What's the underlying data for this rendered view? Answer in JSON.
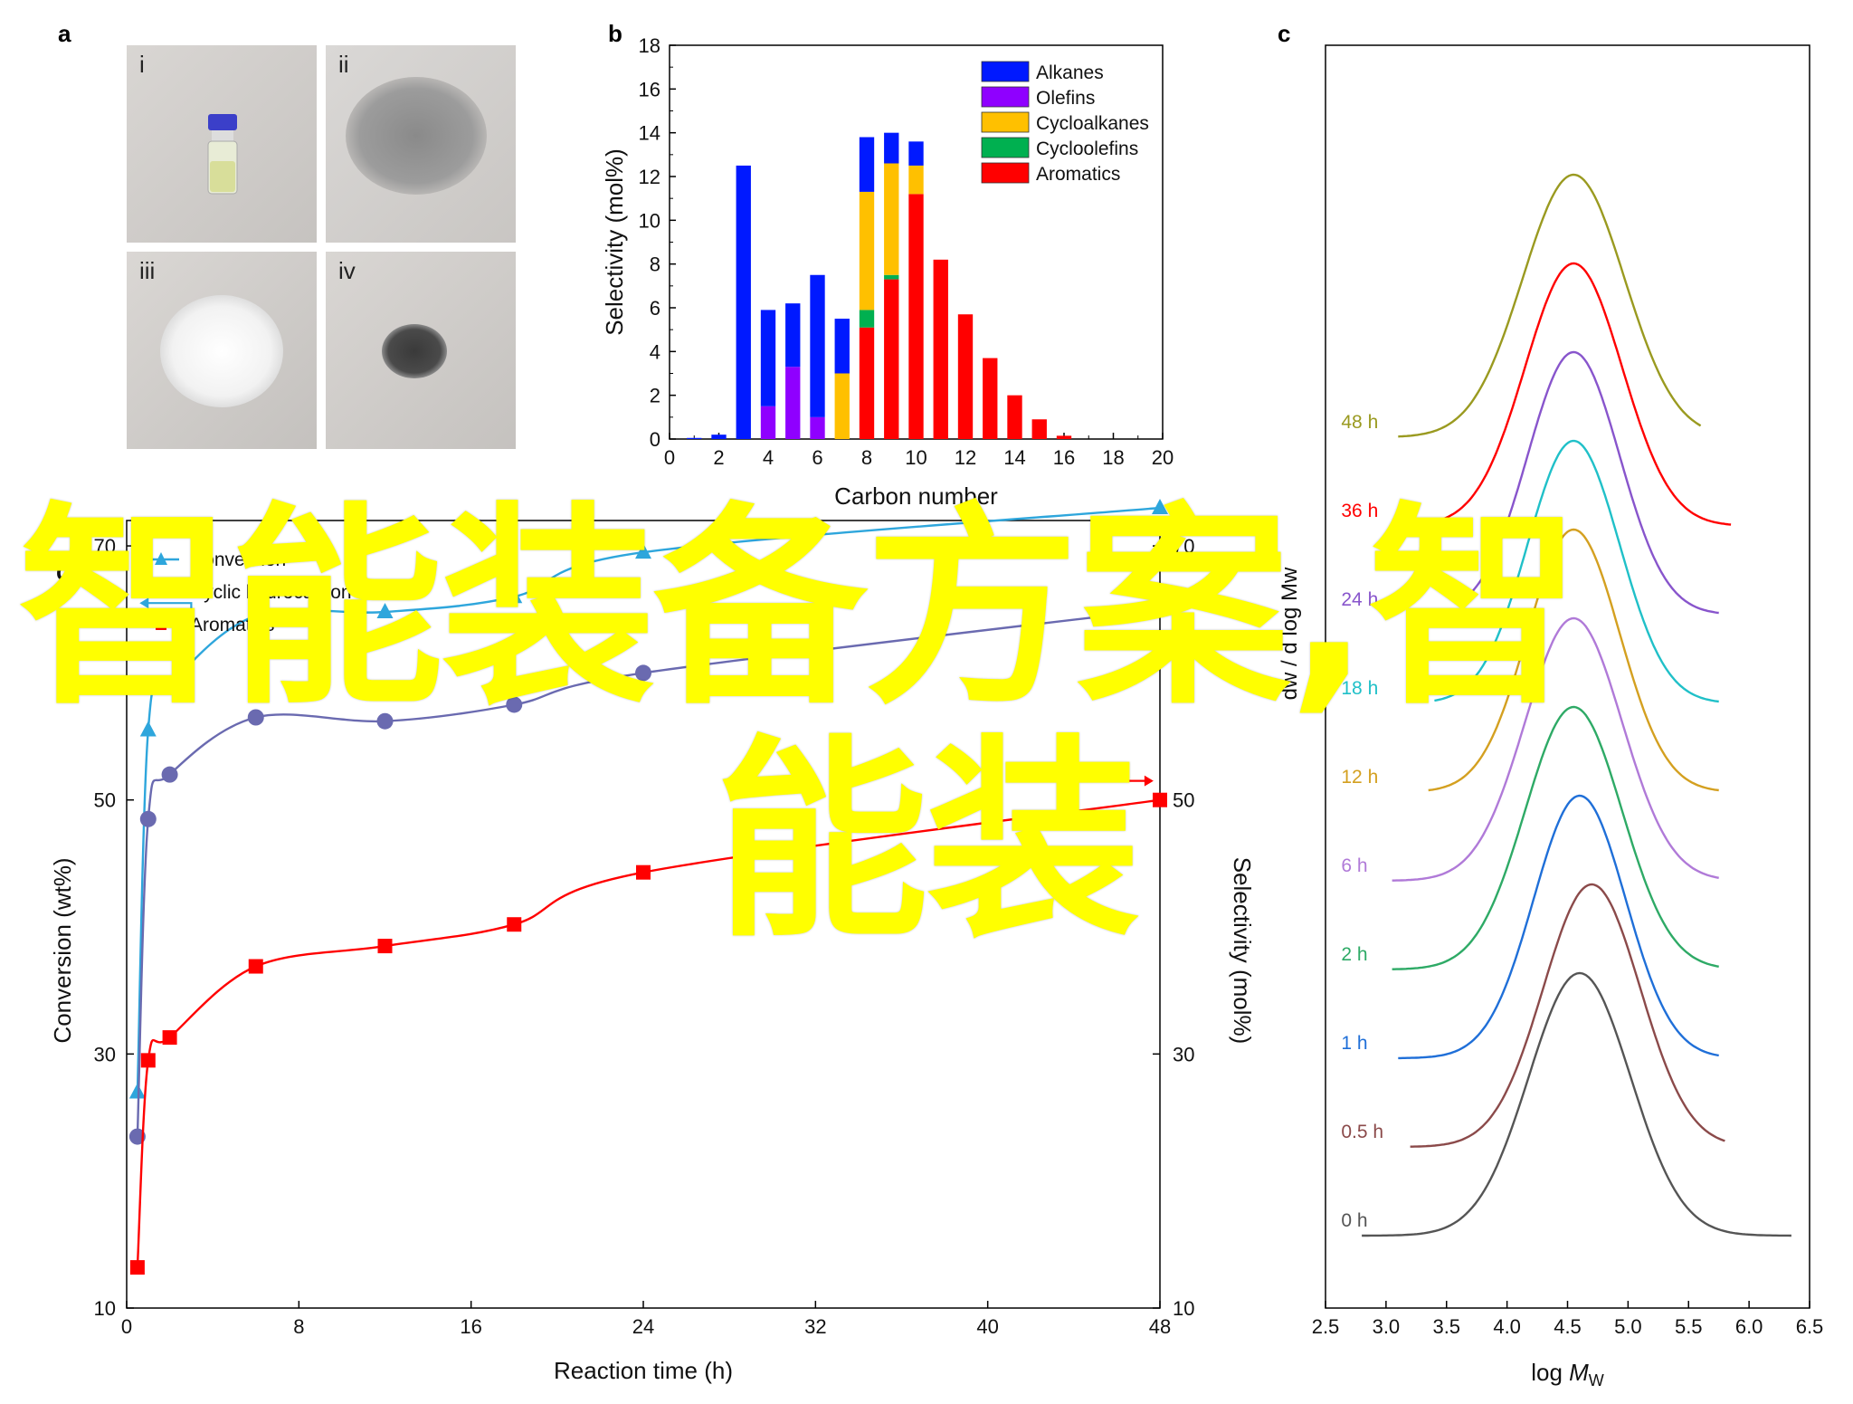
{
  "panels": {
    "a": "a",
    "b": "b",
    "c": "c",
    "d": "d"
  },
  "photos": [
    {
      "label": "i",
      "subject": "vial-with-liquid"
    },
    {
      "label": "ii",
      "subject": "grey-powder"
    },
    {
      "label": "iii",
      "subject": "white-powder"
    },
    {
      "label": "iv",
      "subject": "dark-powder"
    }
  ],
  "watermark": {
    "line1": "智能装备方案,智",
    "line2": "能装"
  },
  "colors": {
    "alkanes": "#0019ff",
    "olefins": "#8f00ff",
    "cycloalkanes": "#ffc000",
    "cycloolefins": "#00b050",
    "aromatics": "#ff0000",
    "conversion": "#2ea6dc",
    "cyclic": "#6a6ab0",
    "aromatic_line": "#ff0000",
    "watermark": "#ffff00"
  },
  "chart_data": [
    {
      "id": "b",
      "type": "bar",
      "stacked": true,
      "xlabel": "Carbon number",
      "ylabel": "Selectivity (mol%)",
      "xlim": [
        0,
        20
      ],
      "ylim": [
        0,
        18
      ],
      "xticks": [
        "0",
        "2",
        "4",
        "6",
        "8",
        "10",
        "12",
        "14",
        "16",
        "18",
        "20"
      ],
      "yticks": [
        "0",
        "2",
        "4",
        "6",
        "8",
        "10",
        "12",
        "14",
        "16",
        "18"
      ],
      "legend_position": "top-right",
      "categories": [
        1,
        2,
        3,
        4,
        5,
        6,
        7,
        8,
        9,
        10,
        11,
        12,
        13,
        14,
        15,
        16
      ],
      "series": [
        {
          "name": "Aromatics",
          "color": "#ff0000",
          "values": [
            0,
            0,
            0,
            0,
            0,
            0,
            0,
            5.1,
            7.3,
            11.2,
            8.2,
            5.7,
            3.7,
            2.0,
            0.9,
            0.15
          ]
        },
        {
          "name": "Cycloolefins",
          "color": "#00b050",
          "values": [
            0,
            0,
            0,
            0,
            0,
            0,
            0,
            0.8,
            0.2,
            0,
            0,
            0,
            0,
            0,
            0,
            0
          ]
        },
        {
          "name": "Cycloalkanes",
          "color": "#ffc000",
          "values": [
            0,
            0,
            0,
            0,
            0,
            0,
            3.0,
            5.4,
            5.1,
            1.3,
            0,
            0,
            0,
            0,
            0,
            0
          ]
        },
        {
          "name": "Olefins",
          "color": "#8f00ff",
          "values": [
            0,
            0,
            0,
            1.5,
            3.3,
            1.0,
            0,
            0,
            0,
            0,
            0,
            0,
            0,
            0,
            0,
            0
          ]
        },
        {
          "name": "Alkanes",
          "color": "#0019ff",
          "values": [
            0.05,
            0.2,
            12.5,
            4.4,
            2.9,
            6.5,
            2.5,
            2.5,
            1.4,
            1.1,
            0,
            0,
            0,
            0,
            0,
            0
          ]
        }
      ]
    },
    {
      "id": "c",
      "type": "line",
      "xlabel_main": "log ",
      "xlabel_italic": "M",
      "xlabel_sub": "W",
      "ylabel": "dw / d log Mw",
      "xlim": [
        2.5,
        6.5
      ],
      "xticks": [
        "2.5",
        "3.0",
        "3.5",
        "4.0",
        "4.5",
        "5.0",
        "5.5",
        "6.0",
        "6.5"
      ],
      "series": [
        {
          "name": "0 h",
          "color": "#555555",
          "peak_x": 4.6,
          "width": 0.42,
          "range": [
            2.8,
            6.35
          ]
        },
        {
          "name": "0.5 h",
          "color": "#8b4a4a",
          "peak_x": 4.7,
          "width": 0.4,
          "range": [
            3.2,
            5.8
          ]
        },
        {
          "name": "1 h",
          "color": "#1f6fd8",
          "peak_x": 4.6,
          "width": 0.38,
          "range": [
            3.1,
            5.75
          ]
        },
        {
          "name": "2 h",
          "color": "#2eaa66",
          "peak_x": 4.55,
          "width": 0.4,
          "range": [
            3.05,
            5.75
          ]
        },
        {
          "name": "6 h",
          "color": "#b07ad8",
          "peak_x": 4.55,
          "width": 0.4,
          "range": [
            3.05,
            5.75
          ]
        },
        {
          "name": "12 h",
          "color": "#d4a020",
          "peak_x": 4.55,
          "width": 0.38,
          "range": [
            3.35,
            5.75
          ]
        },
        {
          "name": "18 h",
          "color": "#20c0c8",
          "peak_x": 4.55,
          "width": 0.38,
          "range": [
            3.4,
            5.75
          ]
        },
        {
          "name": "24 h",
          "color": "#8855cc",
          "peak_x": 4.55,
          "width": 0.38,
          "range": [
            3.6,
            5.75
          ]
        },
        {
          "name": "36 h",
          "color": "#ff0000",
          "peak_x": 4.55,
          "width": 0.4,
          "range": [
            3.1,
            5.85
          ]
        },
        {
          "name": "48 h",
          "color": "#9a9a20",
          "peak_x": 4.55,
          "width": 0.42,
          "range": [
            3.1,
            5.6
          ]
        }
      ]
    },
    {
      "id": "d",
      "type": "scatter",
      "xlabel": "Reaction time (h)",
      "ylabel_left": "Conversion (wt%)",
      "ylabel_right": "Selectivity (mol%)",
      "xlim": [
        0,
        48
      ],
      "ylim": [
        10,
        72
      ],
      "xticks": [
        0,
        8,
        16,
        24,
        32,
        40,
        48
      ],
      "yticks": [
        10,
        30,
        50,
        70
      ],
      "legend_position": "top-left",
      "series": [
        {
          "name": "Conversion",
          "color": "#2ea6dc",
          "marker": "triangle",
          "x": [
            0.5,
            1,
            2,
            6,
            12,
            18,
            24,
            48
          ],
          "y": [
            27,
            55.5,
            59,
            64.5,
            64.8,
            66,
            69.5,
            73
          ]
        },
        {
          "name": "Cyclic hydrocarbon",
          "color": "#6a6ab0",
          "marker": "circle",
          "x": [
            0.5,
            1,
            2,
            6,
            12,
            18,
            24,
            48
          ],
          "y": [
            23.5,
            48.5,
            52,
            56.5,
            56.2,
            57.5,
            60,
            65
          ]
        },
        {
          "name": "Aromatics",
          "color": "#ff0000",
          "marker": "square",
          "x": [
            0.5,
            1,
            2,
            6,
            12,
            18,
            24,
            48
          ],
          "y": [
            13.2,
            29.5,
            31.3,
            36.9,
            38.5,
            40.2,
            44.3,
            50
          ]
        }
      ]
    }
  ]
}
